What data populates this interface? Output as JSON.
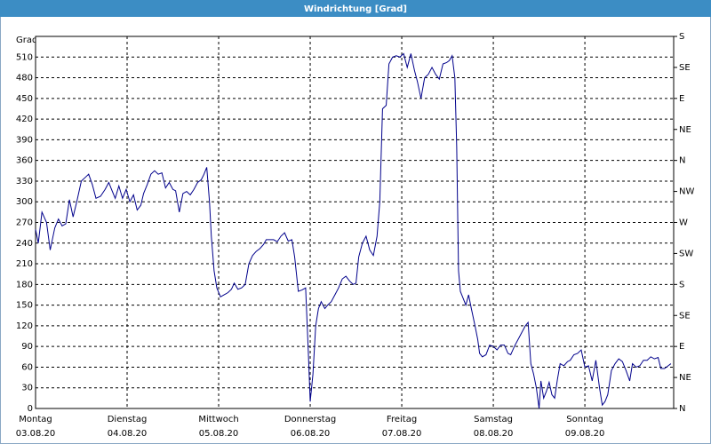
{
  "chart_data": {
    "type": "line",
    "title": "Windrichtung [Grad]",
    "ylabel": "Grad",
    "x": [
      0.0,
      0.03,
      0.07,
      0.12,
      0.16,
      0.21,
      0.25,
      0.29,
      0.33,
      0.37,
      0.41,
      0.45,
      0.5,
      0.54,
      0.58,
      0.62,
      0.66,
      0.71,
      0.76,
      0.8,
      0.83,
      0.87,
      0.91,
      0.95,
      0.99,
      1.03,
      1.07,
      1.11,
      1.15,
      1.18,
      1.22,
      1.26,
      1.3,
      1.34,
      1.38,
      1.42,
      1.46,
      1.5,
      1.53,
      1.57,
      1.61,
      1.65,
      1.69,
      1.73,
      1.77,
      1.81,
      1.84,
      1.87,
      1.9,
      1.92,
      1.95,
      1.98,
      2.02,
      2.06,
      2.1,
      2.14,
      2.17,
      2.21,
      2.25,
      2.29,
      2.33,
      2.37,
      2.41,
      2.45,
      2.49,
      2.52,
      2.56,
      2.6,
      2.64,
      2.68,
      2.72,
      2.76,
      2.8,
      2.83,
      2.87,
      2.91,
      2.95,
      2.98,
      3.0,
      3.03,
      3.06,
      3.09,
      3.12,
      3.16,
      3.19,
      3.23,
      3.27,
      3.31,
      3.35,
      3.39,
      3.43,
      3.47,
      3.5,
      3.53,
      3.57,
      3.61,
      3.65,
      3.69,
      3.73,
      3.76,
      3.79,
      3.83,
      3.86,
      3.9,
      3.94,
      3.98,
      4.02,
      4.06,
      4.1,
      4.14,
      4.17,
      4.21,
      4.25,
      4.29,
      4.33,
      4.37,
      4.41,
      4.45,
      4.49,
      4.52,
      4.55,
      4.58,
      4.6,
      4.62,
      4.64,
      4.67,
      4.7,
      4.73,
      4.76,
      4.8,
      4.83,
      4.85,
      4.88,
      4.92,
      4.96,
      5.0,
      5.04,
      5.08,
      5.12,
      5.16,
      5.19,
      5.23,
      5.27,
      5.31,
      5.35,
      5.38,
      5.41,
      5.44,
      5.47,
      5.5,
      5.52,
      5.55,
      5.58,
      5.61,
      5.64,
      5.67,
      5.7,
      5.73,
      5.77,
      5.81,
      5.84,
      5.88,
      5.92,
      5.96,
      6.0,
      6.04,
      6.08,
      6.12,
      6.16,
      6.19,
      6.22,
      6.25,
      6.29,
      6.33,
      6.37,
      6.41,
      6.45,
      6.49,
      6.52,
      6.56,
      6.6,
      6.64,
      6.68,
      6.72,
      6.76,
      6.8,
      6.83,
      6.87,
      6.91,
      6.94
    ],
    "series": [
      {
        "name": "Windrichtung",
        "color": "#00008b",
        "values": [
          260,
          240,
          285,
          270,
          230,
          262,
          275,
          265,
          268,
          303,
          278,
          300,
          330,
          335,
          340,
          325,
          305,
          308,
          318,
          328,
          318,
          305,
          323,
          305,
          318,
          300,
          310,
          288,
          295,
          312,
          325,
          340,
          345,
          340,
          342,
          320,
          328,
          318,
          316,
          285,
          312,
          315,
          310,
          318,
          328,
          332,
          340,
          350,
          300,
          250,
          200,
          175,
          162,
          165,
          168,
          173,
          182,
          173,
          175,
          180,
          210,
          222,
          228,
          232,
          238,
          245,
          245,
          245,
          242,
          250,
          255,
          243,
          245,
          220,
          170,
          172,
          175,
          80,
          10,
          50,
          120,
          145,
          155,
          145,
          150,
          155,
          165,
          175,
          188,
          192,
          185,
          180,
          182,
          220,
          240,
          250,
          230,
          222,
          250,
          300,
          435,
          440,
          500,
          510,
          512,
          510,
          515,
          495,
          515,
          490,
          475,
          450,
          480,
          485,
          495,
          485,
          478,
          500,
          502,
          505,
          512,
          480,
          380,
          200,
          170,
          160,
          150,
          165,
          145,
          120,
          100,
          80,
          75,
          78,
          92,
          90,
          85,
          92,
          92,
          80,
          78,
          90,
          100,
          110,
          120,
          125,
          65,
          50,
          30,
          0,
          40,
          15,
          25,
          38,
          20,
          15,
          42,
          65,
          62,
          68,
          70,
          78,
          80,
          85,
          60,
          62,
          40,
          70,
          30,
          5,
          10,
          20,
          55,
          65,
          72,
          68,
          55,
          40,
          65,
          60,
          62,
          70,
          70,
          75,
          72,
          74,
          58,
          58,
          62,
          65
        ]
      }
    ],
    "xlim": [
      0,
      6.97
    ],
    "xticks": [
      {
        "value": 0,
        "label": "Montag",
        "date": "03.08.20"
      },
      {
        "value": 1,
        "label": "Dienstag",
        "date": "04.08.20"
      },
      {
        "value": 2,
        "label": "Mittwoch",
        "date": "05.08.20"
      },
      {
        "value": 3,
        "label": "Donnerstag",
        "date": "06.08.20"
      },
      {
        "value": 4,
        "label": "Freitag",
        "date": "07.08.20"
      },
      {
        "value": 5,
        "label": "Samstag",
        "date": "08.08.20"
      },
      {
        "value": 6,
        "label": "Sonntag",
        "date": "09.08.20"
      }
    ],
    "ylim": [
      0,
      540
    ],
    "yticks": [
      0,
      30,
      60,
      90,
      120,
      150,
      180,
      210,
      240,
      270,
      300,
      330,
      360,
      390,
      420,
      450,
      480,
      510
    ],
    "y2lim": [
      0,
      540
    ],
    "y2ticks": [
      {
        "value": 0,
        "label": "N"
      },
      {
        "value": 45,
        "label": "NE"
      },
      {
        "value": 90,
        "label": "E"
      },
      {
        "value": 135,
        "label": "SE"
      },
      {
        "value": 180,
        "label": "S"
      },
      {
        "value": 225,
        "label": "SW"
      },
      {
        "value": 270,
        "label": "W"
      },
      {
        "value": 315,
        "label": "NW"
      },
      {
        "value": 360,
        "label": "N"
      },
      {
        "value": 405,
        "label": "NE"
      },
      {
        "value": 450,
        "label": "E"
      },
      {
        "value": 495,
        "label": "SE"
      },
      {
        "value": 540,
        "label": "S"
      }
    ],
    "grid": true
  }
}
